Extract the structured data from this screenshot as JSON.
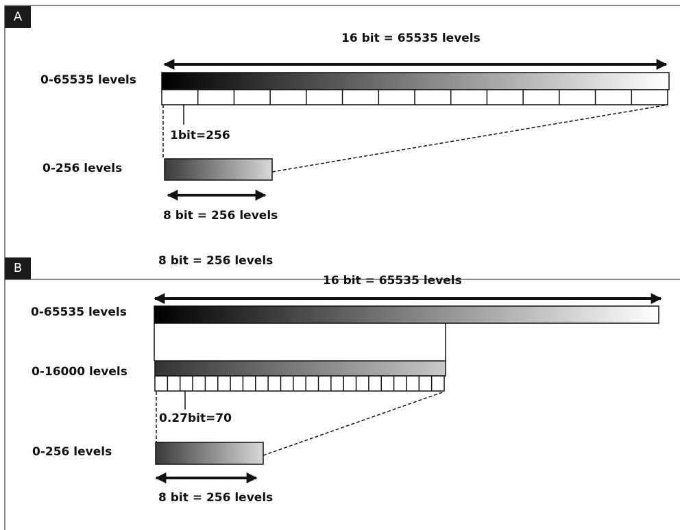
{
  "panel_a": {
    "tag": "A",
    "range_16bit": "16 bit = 65535 levels",
    "row_full": "0-65535 levels",
    "tick_note": "1bit=256",
    "row_small": "0-256 levels",
    "range_8bit": "8 bit = 256 levels"
  },
  "panel_b": {
    "tag": "B",
    "range_8bit_top": "8 bit = 256 levels",
    "range_16bit": "16 bit = 65535 levels",
    "row_full": "0-65535 levels",
    "row_mid": "0-16000 levels",
    "tick_note": "0.27bit=70",
    "row_small": "0-256 levels",
    "range_8bit": "8 bit = 256 levels"
  },
  "colors": {
    "ink": "#111111",
    "tag_bg": "#1a1a1a"
  }
}
